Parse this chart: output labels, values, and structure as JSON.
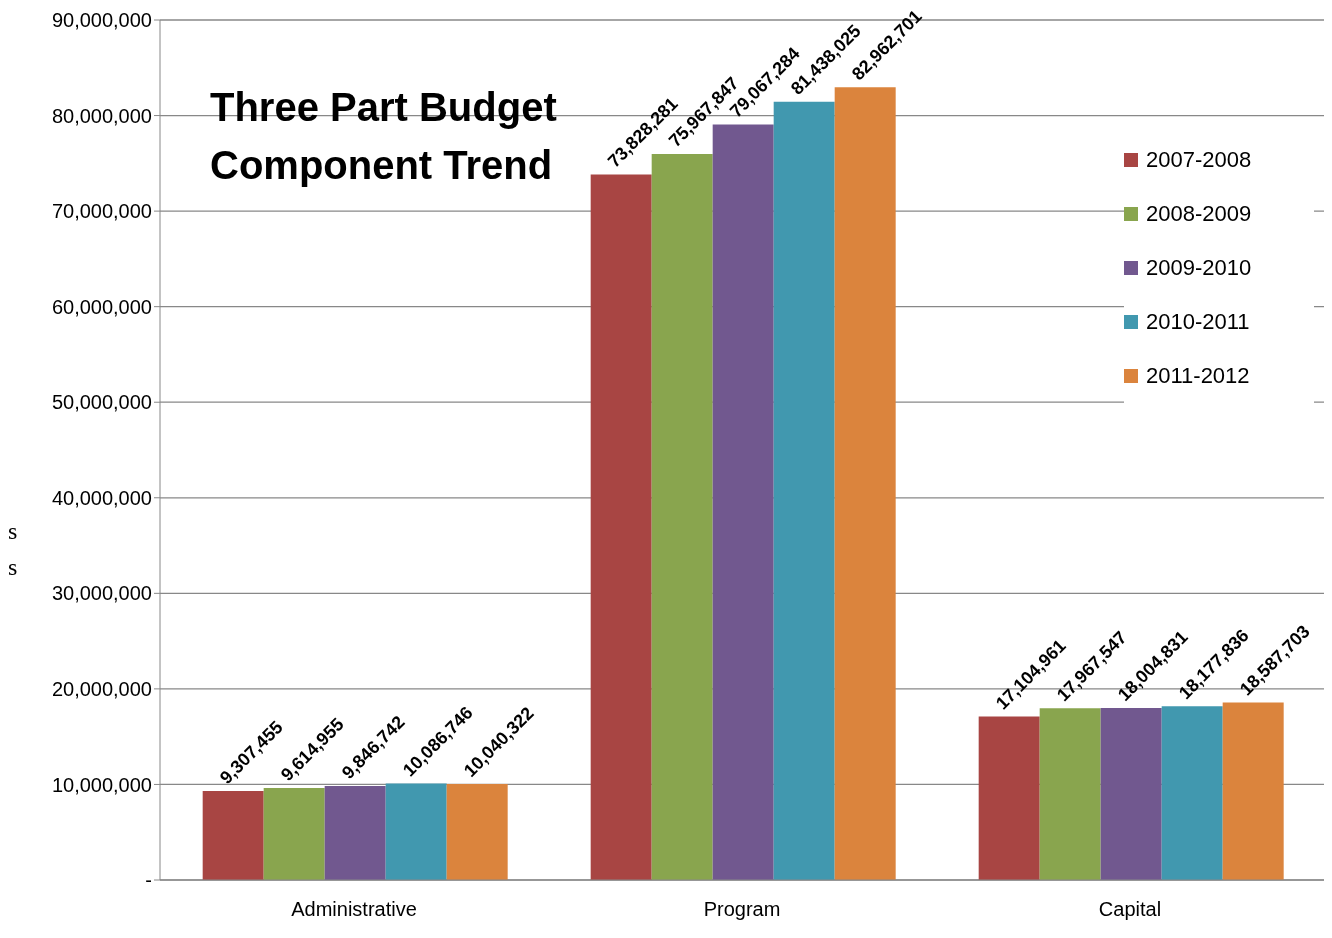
{
  "chart_data": {
    "type": "bar",
    "title": "Three Part Budget Component Trend",
    "categories": [
      "Administrative",
      "Program",
      "Capital"
    ],
    "series": [
      {
        "name": "2007-2008",
        "color": "#a84543",
        "values": [
          9307455,
          73828281,
          17104961
        ],
        "value_labels": [
          "9,307,455",
          "73,828,281",
          "17,104,961"
        ]
      },
      {
        "name": "2008-2009",
        "color": "#89a54e",
        "values": [
          9614955,
          75967847,
          17967547
        ],
        "value_labels": [
          "9,614,955",
          "75,967,847",
          "17,967,547"
        ]
      },
      {
        "name": "2009-2010",
        "color": "#71588f",
        "values": [
          9846742,
          79067284,
          18004831
        ],
        "value_labels": [
          "9,846,742",
          "79,067,284",
          "18,004,831"
        ]
      },
      {
        "name": "2010-2011",
        "color": "#4198af",
        "values": [
          10086746,
          81438025,
          18177836
        ],
        "value_labels": [
          "10,086,746",
          "81,438,025",
          "18,177,836"
        ]
      },
      {
        "name": "2011-2012",
        "color": "#db843d",
        "values": [
          10040322,
          82962701,
          18587703
        ],
        "value_labels": [
          "10,040,322",
          "82,962,701",
          "18,587,703"
        ]
      }
    ],
    "ylim": [
      0,
      90000000
    ],
    "yticks": [
      {
        "value": 0,
        "label": "-"
      },
      {
        "value": 10000000,
        "label": "10,000,000"
      },
      {
        "value": 20000000,
        "label": "20,000,000"
      },
      {
        "value": 30000000,
        "label": "30,000,000"
      },
      {
        "value": 40000000,
        "label": "40,000,000"
      },
      {
        "value": 50000000,
        "label": "50,000,000"
      },
      {
        "value": 60000000,
        "label": "60,000,000"
      },
      {
        "value": 70000000,
        "label": "70,000,000"
      },
      {
        "value": 80000000,
        "label": "80,000,000"
      },
      {
        "value": 90000000,
        "label": "90,000,000"
      }
    ],
    "grid": "y",
    "legend": "right",
    "annotations": [
      "s",
      "s"
    ]
  }
}
